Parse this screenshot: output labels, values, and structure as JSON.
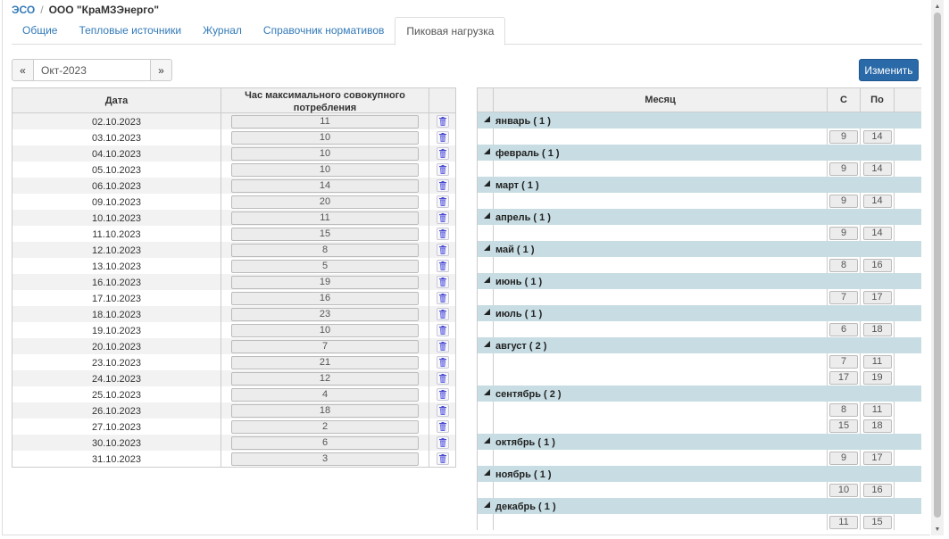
{
  "breadcrumb": {
    "root": "ЭСО",
    "separator": "/",
    "current": "ООО \"КраМЗЭнерго\""
  },
  "tabs": [
    {
      "label": "Общие",
      "active": false
    },
    {
      "label": "Тепловые источники",
      "active": false
    },
    {
      "label": "Журнал",
      "active": false
    },
    {
      "label": "Справочник нормативов",
      "active": false
    },
    {
      "label": "Пиковая нагрузка",
      "active": true
    }
  ],
  "month_nav": {
    "prev_label": "«",
    "next_label": "»",
    "value": "Окт-2023"
  },
  "edit_button": {
    "label": "Изменить"
  },
  "left_table": {
    "headers": {
      "date": "Дата",
      "hour": "Час максимального совокупного потребления"
    },
    "rows": [
      {
        "date": "02.10.2023",
        "hour": "11"
      },
      {
        "date": "03.10.2023",
        "hour": "10"
      },
      {
        "date": "04.10.2023",
        "hour": "10"
      },
      {
        "date": "05.10.2023",
        "hour": "10"
      },
      {
        "date": "06.10.2023",
        "hour": "14"
      },
      {
        "date": "09.10.2023",
        "hour": "20"
      },
      {
        "date": "10.10.2023",
        "hour": "11"
      },
      {
        "date": "11.10.2023",
        "hour": "15"
      },
      {
        "date": "12.10.2023",
        "hour": "8"
      },
      {
        "date": "13.10.2023",
        "hour": "5"
      },
      {
        "date": "16.10.2023",
        "hour": "19"
      },
      {
        "date": "17.10.2023",
        "hour": "16"
      },
      {
        "date": "18.10.2023",
        "hour": "23"
      },
      {
        "date": "19.10.2023",
        "hour": "10"
      },
      {
        "date": "20.10.2023",
        "hour": "7"
      },
      {
        "date": "23.10.2023",
        "hour": "21"
      },
      {
        "date": "24.10.2023",
        "hour": "12"
      },
      {
        "date": "25.10.2023",
        "hour": "4"
      },
      {
        "date": "26.10.2023",
        "hour": "18"
      },
      {
        "date": "27.10.2023",
        "hour": "2"
      },
      {
        "date": "30.10.2023",
        "hour": "6"
      },
      {
        "date": "31.10.2023",
        "hour": "3"
      }
    ],
    "delete_icon": "trash-icon"
  },
  "right_table": {
    "headers": {
      "month": "Месяц",
      "from": "С",
      "to": "По"
    },
    "groups": [
      {
        "label": "январь ( 1 )",
        "ranges": [
          {
            "from": "9",
            "to": "14"
          }
        ]
      },
      {
        "label": "февраль ( 1 )",
        "ranges": [
          {
            "from": "9",
            "to": "14"
          }
        ]
      },
      {
        "label": "март ( 1 )",
        "ranges": [
          {
            "from": "9",
            "to": "14"
          }
        ]
      },
      {
        "label": "апрель ( 1 )",
        "ranges": [
          {
            "from": "9",
            "to": "14"
          }
        ]
      },
      {
        "label": "май ( 1 )",
        "ranges": [
          {
            "from": "8",
            "to": "16"
          }
        ]
      },
      {
        "label": "июнь ( 1 )",
        "ranges": [
          {
            "from": "7",
            "to": "17"
          }
        ]
      },
      {
        "label": "июль ( 1 )",
        "ranges": [
          {
            "from": "6",
            "to": "18"
          }
        ]
      },
      {
        "label": "август ( 2 )",
        "ranges": [
          {
            "from": "7",
            "to": "11"
          },
          {
            "from": "17",
            "to": "19"
          }
        ]
      },
      {
        "label": "сентябрь ( 2 )",
        "ranges": [
          {
            "from": "8",
            "to": "11"
          },
          {
            "from": "15",
            "to": "18"
          }
        ]
      },
      {
        "label": "октябрь ( 1 )",
        "ranges": [
          {
            "from": "9",
            "to": "17"
          }
        ]
      },
      {
        "label": "ноябрь ( 1 )",
        "ranges": [
          {
            "from": "10",
            "to": "16"
          }
        ]
      },
      {
        "label": "декабрь ( 1 )",
        "ranges": [
          {
            "from": "11",
            "to": "15"
          }
        ]
      }
    ],
    "expand_icon": "triangle-down-icon"
  },
  "colors": {
    "link": "#337ab7",
    "primary_button": "#2a6aa8",
    "group_row": "#c7dde3",
    "odd_row": "#f2f2f2"
  }
}
